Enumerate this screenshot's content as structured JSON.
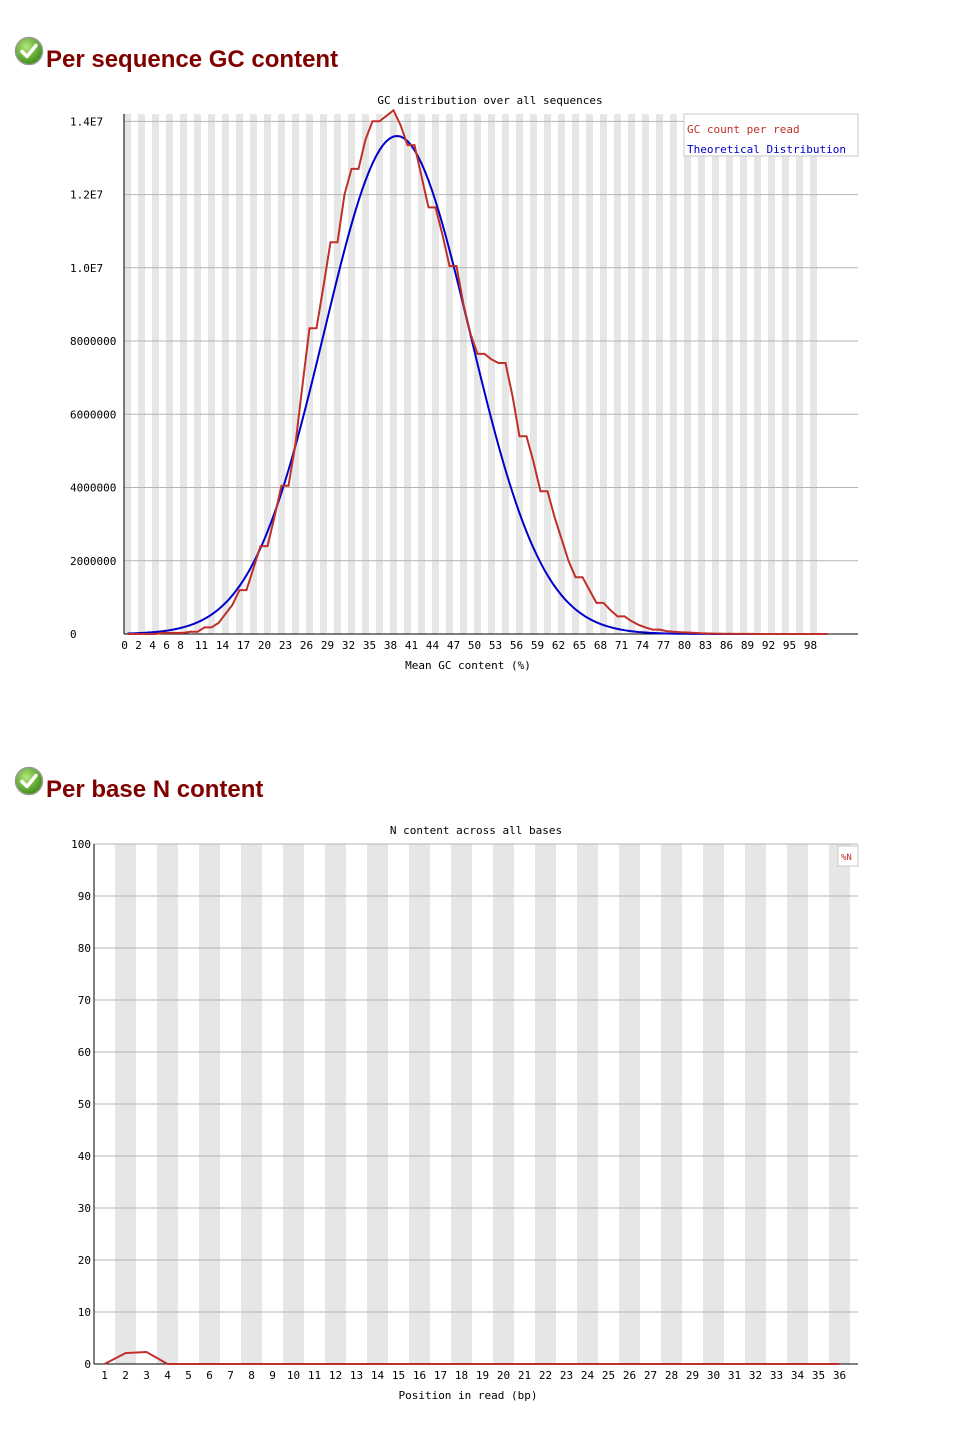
{
  "colors": {
    "heading": "#800000",
    "gc_series": "#c0302a",
    "theoretical_series": "#0000cc",
    "stripe": "#e6e6e6",
    "grid": "#b4b4b4"
  },
  "sections": [
    {
      "title": "Per sequence GC content",
      "status_icon": "check-icon"
    },
    {
      "title": "Per base N content",
      "status_icon": "check-icon"
    }
  ],
  "chart_data": [
    {
      "type": "line",
      "title": "GC distribution over all sequences",
      "xlabel": "Mean GC content (%)",
      "ylabel": "",
      "ylim": [
        0,
        14000000
      ],
      "xlim": [
        0,
        100
      ],
      "y_ticks": [
        0,
        2000000,
        4000000,
        6000000,
        8000000,
        10000000,
        12000000,
        14000000
      ],
      "y_tick_labels": [
        "0",
        "2000000",
        "4000000",
        "6000000",
        "8000000",
        "1.0E7",
        "1.2E7",
        "1.4E7"
      ],
      "x_tick_labels": [
        "0",
        "2",
        "4",
        "6",
        "8",
        "11",
        "14",
        "17",
        "20",
        "23",
        "26",
        "29",
        "32",
        "35",
        "38",
        "41",
        "44",
        "47",
        "50",
        "53",
        "56",
        "59",
        "62",
        "65",
        "68",
        "71",
        "74",
        "77",
        "80",
        "83",
        "86",
        "89",
        "92",
        "95",
        "98"
      ],
      "grid": true,
      "legend_position": "top-right",
      "series": [
        {
          "name": "GC count per read",
          "x": [
            0,
            1,
            2,
            3,
            4,
            5,
            6,
            7,
            8,
            9,
            10,
            11,
            12,
            13,
            14,
            15,
            16,
            17,
            18,
            19,
            20,
            21,
            22,
            23,
            24,
            25,
            26,
            27,
            28,
            29,
            30,
            31,
            32,
            33,
            34,
            35,
            36,
            37,
            38,
            39,
            40,
            41,
            42,
            43,
            44,
            45,
            46,
            47,
            48,
            49,
            50,
            51,
            52,
            53,
            54,
            55,
            56,
            57,
            58,
            59,
            60,
            61,
            62,
            63,
            64,
            65,
            66,
            67,
            68,
            69,
            70,
            71,
            72,
            73,
            74,
            75,
            76,
            77,
            78,
            79,
            80,
            81,
            82,
            83,
            84,
            85,
            86,
            87,
            88,
            89,
            90,
            91,
            92,
            93,
            94,
            95,
            96,
            97,
            98,
            99,
            100
          ],
          "y": [
            0,
            0,
            0,
            0,
            0,
            30000,
            30000,
            30000,
            30000,
            60000,
            60000,
            180000,
            180000,
            300000,
            550000,
            800000,
            1200000,
            1200000,
            1800000,
            2400000,
            2400000,
            3200000,
            4050000,
            4050000,
            5200000,
            6800000,
            8350000,
            8350000,
            9500000,
            10700000,
            10700000,
            12000000,
            12700000,
            12700000,
            13500000,
            14000000,
            14000000,
            14150000,
            14300000,
            13900000,
            13350000,
            13350000,
            12500000,
            11650000,
            11650000,
            10900000,
            10050000,
            10050000,
            9000000,
            8200000,
            7650000,
            7650000,
            7500000,
            7400000,
            7400000,
            6500000,
            5400000,
            5400000,
            4700000,
            3900000,
            3900000,
            3200000,
            2600000,
            2000000,
            1550000,
            1550000,
            1200000,
            850000,
            850000,
            650000,
            480000,
            480000,
            350000,
            250000,
            180000,
            120000,
            120000,
            80000,
            60000,
            50000,
            40000,
            30000,
            20000,
            15000,
            10000,
            8000,
            6000,
            4000,
            3000,
            2000,
            1000,
            1000,
            500,
            500,
            300,
            200,
            100,
            100,
            50,
            0,
            0
          ],
          "color": "#c0302a"
        },
        {
          "name": "Theoretical Distribution",
          "mean": 38.5,
          "sd": 10.4,
          "peak": 13600000,
          "color": "#0000cc"
        }
      ]
    },
    {
      "type": "line",
      "title": "N content across all bases",
      "xlabel": "Position in read (bp)",
      "ylabel": "",
      "ylim": [
        0,
        100
      ],
      "y_ticks": [
        0,
        10,
        20,
        30,
        40,
        50,
        60,
        70,
        80,
        90,
        100
      ],
      "categories": [
        "1",
        "2",
        "3",
        "4",
        "5",
        "6",
        "7",
        "8",
        "9",
        "10",
        "11",
        "12",
        "13",
        "14",
        "15",
        "16",
        "17",
        "18",
        "19",
        "20",
        "21",
        "22",
        "23",
        "24",
        "25",
        "26",
        "27",
        "28",
        "29",
        "30",
        "31",
        "32",
        "33",
        "34",
        "35",
        "36"
      ],
      "grid": true,
      "legend_position": "top-right",
      "series": [
        {
          "name": "%N",
          "values": [
            0,
            2.1,
            2.3,
            0,
            0,
            0,
            0,
            0,
            0,
            0,
            0,
            0,
            0,
            0,
            0,
            0,
            0,
            0,
            0,
            0,
            0,
            0,
            0,
            0,
            0,
            0,
            0,
            0,
            0,
            0,
            0,
            0,
            0,
            0,
            0,
            0
          ],
          "color": "#c0302a"
        }
      ]
    }
  ]
}
